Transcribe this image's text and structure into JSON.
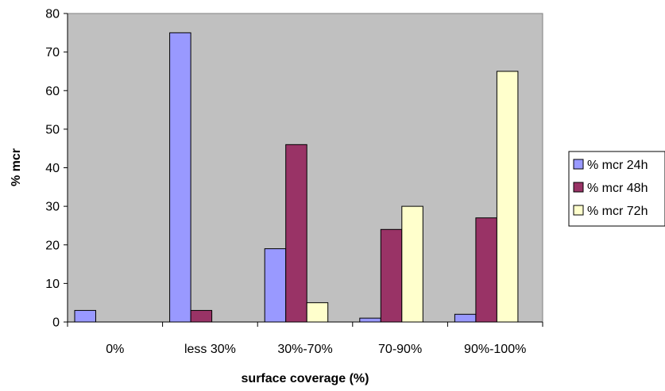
{
  "chart_data": {
    "type": "bar",
    "categories": [
      "0%",
      "less 30%",
      "30%-70%",
      "70-90%",
      "90%-100%"
    ],
    "series": [
      {
        "name": "% mcr 24h",
        "values": [
          3,
          75,
          19,
          1,
          2
        ],
        "color": "#9999ff"
      },
      {
        "name": "% mcr 48h",
        "values": [
          0,
          3,
          46,
          24,
          27
        ],
        "color": "#993366"
      },
      {
        "name": "% mcr 72h",
        "values": [
          0,
          0,
          5,
          30,
          65
        ],
        "color": "#ffffcc"
      }
    ],
    "xlabel": "surface coverage (%)",
    "ylabel": "% mcr",
    "ylim": [
      0,
      80
    ],
    "yticks": [
      "0",
      "10",
      "20",
      "30",
      "40",
      "50",
      "60",
      "70",
      "80"
    ],
    "plot_background": "#c0c0c0",
    "grid": false,
    "legend_position": "right"
  }
}
